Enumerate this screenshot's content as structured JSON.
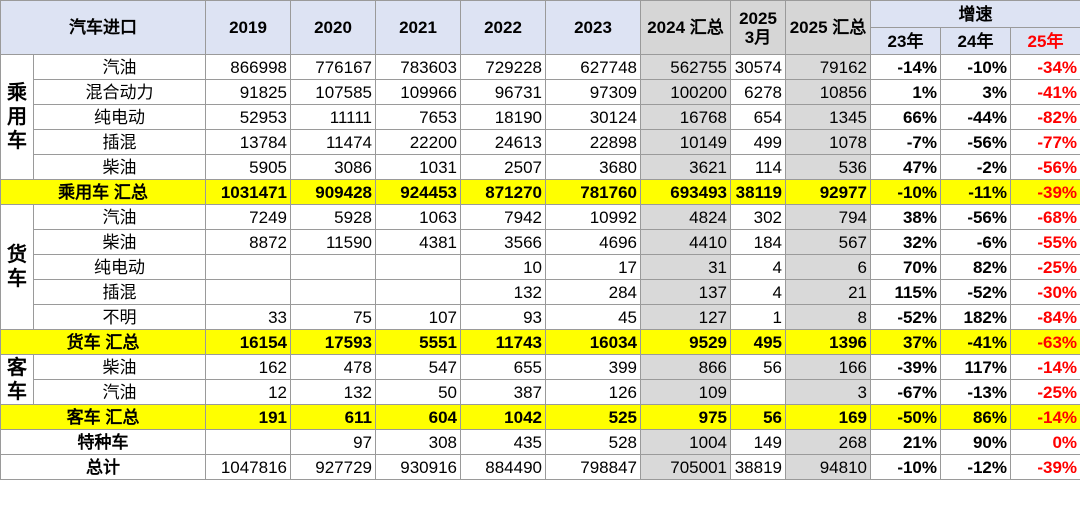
{
  "header": {
    "title": "汽车进口",
    "columns": [
      "2019",
      "2020",
      "2021",
      "2022",
      "2023",
      "2024 汇总",
      "2025 3月",
      "2025 汇总"
    ],
    "growth": "增速",
    "growth_columns": [
      "23年",
      "24年",
      "25年"
    ]
  },
  "groups": [
    {
      "label": "乘用车",
      "rows": [
        {
          "label": "汽油",
          "values": [
            866998,
            776167,
            783603,
            729228,
            627748,
            562755,
            30574,
            79162
          ],
          "growth": [
            "-14%",
            "-10%",
            "-34%"
          ]
        },
        {
          "label": "混合动力",
          "values": [
            91825,
            107585,
            109966,
            96731,
            97309,
            100200,
            6278,
            10856
          ],
          "growth": [
            "1%",
            "3%",
            "-41%"
          ]
        },
        {
          "label": "纯电动",
          "values": [
            52953,
            11111,
            7653,
            18190,
            30124,
            16768,
            654,
            1345
          ],
          "growth": [
            "66%",
            "-44%",
            "-82%"
          ]
        },
        {
          "label": "插混",
          "values": [
            13784,
            11474,
            22200,
            24613,
            22898,
            10149,
            499,
            1078
          ],
          "growth": [
            "-7%",
            "-56%",
            "-77%"
          ]
        },
        {
          "label": "柴油",
          "values": [
            5905,
            3086,
            1031,
            2507,
            3680,
            3621,
            114,
            536
          ],
          "growth": [
            "47%",
            "-2%",
            "-56%"
          ]
        }
      ],
      "total": {
        "label": "乘用车 汇总",
        "values": [
          1031471,
          909428,
          924453,
          871270,
          781760,
          693493,
          38119,
          92977
        ],
        "growth": [
          "-10%",
          "-11%",
          "-39%"
        ]
      }
    },
    {
      "label": "货车",
      "rows": [
        {
          "label": "汽油",
          "values": [
            7249,
            5928,
            1063,
            7942,
            10992,
            4824,
            302,
            794
          ],
          "growth": [
            "38%",
            "-56%",
            "-68%"
          ]
        },
        {
          "label": "柴油",
          "values": [
            8872,
            11590,
            4381,
            3566,
            4696,
            4410,
            184,
            567
          ],
          "growth": [
            "32%",
            "-6%",
            "-55%"
          ]
        },
        {
          "label": "纯电动",
          "values": [
            null,
            null,
            null,
            10,
            17,
            31,
            4,
            6
          ],
          "growth": [
            "70%",
            "82%",
            "-25%"
          ]
        },
        {
          "label": "插混",
          "values": [
            null,
            null,
            null,
            132,
            284,
            137,
            4,
            21
          ],
          "growth": [
            "115%",
            "-52%",
            "-30%"
          ]
        },
        {
          "label": "不明",
          "values": [
            33,
            75,
            107,
            93,
            45,
            127,
            1,
            8
          ],
          "growth": [
            "-52%",
            "182%",
            "-84%"
          ]
        }
      ],
      "total": {
        "label": "货车 汇总",
        "values": [
          16154,
          17593,
          5551,
          11743,
          16034,
          9529,
          495,
          1396
        ],
        "growth": [
          "37%",
          "-41%",
          "-63%"
        ]
      }
    },
    {
      "label": "客车",
      "rows": [
        {
          "label": "柴油",
          "values": [
            162,
            478,
            547,
            655,
            399,
            866,
            56,
            166
          ],
          "growth": [
            "-39%",
            "117%",
            "-14%"
          ]
        },
        {
          "label": "汽油",
          "values": [
            12,
            132,
            50,
            387,
            126,
            109,
            null,
            3
          ],
          "growth": [
            "-67%",
            "-13%",
            "-25%"
          ]
        }
      ],
      "total": {
        "label": "客车 汇总",
        "values": [
          191,
          611,
          604,
          1042,
          525,
          975,
          56,
          169
        ],
        "growth": [
          "-50%",
          "86%",
          "-14%"
        ]
      }
    }
  ],
  "others": [
    {
      "label": "特种车",
      "values": [
        null,
        97,
        308,
        435,
        528,
        1004,
        149,
        268
      ],
      "growth": [
        "21%",
        "90%",
        "0%"
      ]
    },
    {
      "label": "总计",
      "values": [
        1047816,
        927729,
        930916,
        884490,
        798847,
        705001,
        38819,
        94810
      ],
      "growth": [
        "-10%",
        "-12%",
        "-39%"
      ]
    }
  ]
}
